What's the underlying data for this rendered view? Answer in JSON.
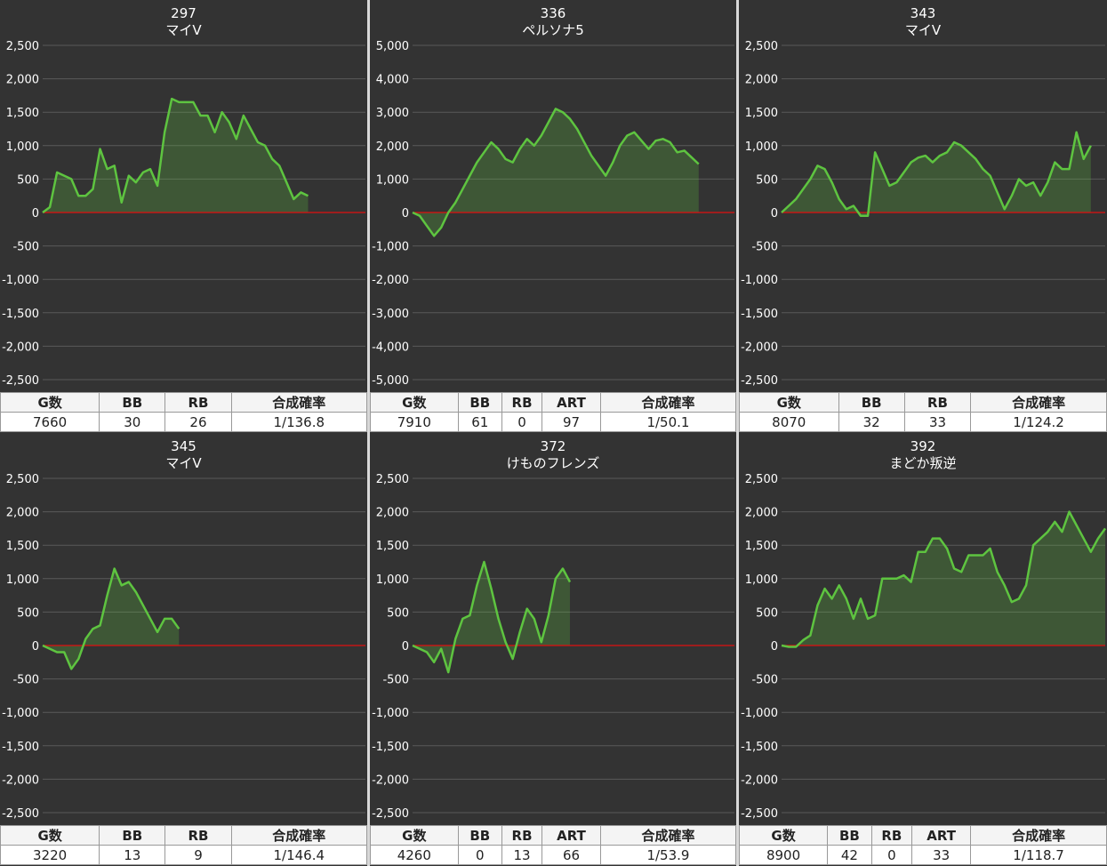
{
  "chart_data": [
    {
      "type": "line",
      "title": "297",
      "subtitle": "マイV",
      "color": "#5ec440",
      "zero_line_color": "#e01010",
      "grid": true,
      "ylim": [
        -2500,
        2500
      ],
      "yticks": [
        {
          "value": 2500,
          "label": "2,500"
        },
        {
          "value": 2000,
          "label": "2,000"
        },
        {
          "value": 1500,
          "label": "1,500"
        },
        {
          "value": 1000,
          "label": "1,000"
        },
        500,
        0,
        -500,
        {
          "value": -1000,
          "label": "-1,000"
        },
        {
          "value": -1500,
          "label": "-1,500"
        },
        {
          "value": -2000,
          "label": "-2,000"
        },
        {
          "value": -2500,
          "label": "-2,500"
        }
      ],
      "values": [
        0,
        80,
        600,
        550,
        500,
        250,
        250,
        350,
        950,
        650,
        700,
        150,
        550,
        450,
        600,
        650,
        400,
        1200,
        1700,
        1650,
        1650,
        1650,
        1450,
        1450,
        1200,
        1500,
        1350,
        1100,
        1450,
        1250,
        1050,
        1000,
        800,
        700,
        450,
        200,
        300,
        250
      ],
      "table": {
        "header": [
          "G数",
          "BB",
          "RB",
          "合成確率"
        ],
        "rows": [
          [
            "7660",
            "30",
            "26",
            "1/136.8"
          ]
        ]
      }
    },
    {
      "type": "line",
      "title": "336",
      "subtitle": "ペルソナ5",
      "color": "#5ec440",
      "zero_line_color": "#e01010",
      "grid": true,
      "ylim": [
        -5000,
        5000
      ],
      "yticks": [
        {
          "value": 5000,
          "label": "5,000"
        },
        {
          "value": 4000,
          "label": "4,000"
        },
        {
          "value": 3000,
          "label": "3,000"
        },
        {
          "value": 2000,
          "label": "2,000"
        },
        {
          "value": 1000,
          "label": "1,000"
        },
        0,
        {
          "value": -1000,
          "label": "-1,000"
        },
        {
          "value": -2000,
          "label": "-2,000"
        },
        {
          "value": -3000,
          "label": "-3,000"
        },
        {
          "value": -4000,
          "label": "-4,000"
        },
        {
          "value": -5000,
          "label": "-5,000"
        }
      ],
      "values": [
        0,
        -100,
        -400,
        -700,
        -450,
        0,
        300,
        700,
        1100,
        1500,
        1800,
        2100,
        1900,
        1600,
        1500,
        1900,
        2200,
        2000,
        2300,
        2700,
        3100,
        3000,
        2800,
        2500,
        2100,
        1700,
        1400,
        1100,
        1500,
        2000,
        2300,
        2400,
        2150,
        1900,
        2150,
        2200,
        2100,
        1800,
        1850,
        1650,
        1450
      ],
      "table": {
        "header": [
          "G数",
          "BB",
          "RB",
          "ART",
          "合成確率"
        ],
        "rows": [
          [
            "7910",
            "61",
            "0",
            "97",
            "1/50.1"
          ]
        ]
      }
    },
    {
      "type": "line",
      "title": "343",
      "subtitle": "マイV",
      "color": "#5ec440",
      "zero_line_color": "#e01010",
      "grid": true,
      "ylim": [
        -2500,
        2500
      ],
      "yticks": [
        {
          "value": 2500,
          "label": "2,500"
        },
        {
          "value": 2000,
          "label": "2,000"
        },
        {
          "value": 1500,
          "label": "1,500"
        },
        {
          "value": 1000,
          "label": "1,000"
        },
        500,
        0,
        -500,
        {
          "value": -1000,
          "label": "-1,000"
        },
        {
          "value": -1500,
          "label": "-1,500"
        },
        {
          "value": -2000,
          "label": "-2,000"
        },
        {
          "value": -2500,
          "label": "-2,500"
        }
      ],
      "values": [
        0,
        100,
        200,
        350,
        500,
        700,
        650,
        450,
        200,
        50,
        100,
        -50,
        -50,
        900,
        650,
        400,
        450,
        600,
        750,
        820,
        850,
        750,
        850,
        900,
        1050,
        1000,
        900,
        800,
        650,
        550,
        300,
        50,
        250,
        500,
        400,
        450,
        250,
        450,
        750,
        650,
        650,
        1200,
        800,
        1000
      ],
      "table": {
        "header": [
          "G数",
          "BB",
          "RB",
          "合成確率"
        ],
        "rows": [
          [
            "8070",
            "32",
            "33",
            "1/124.2"
          ]
        ]
      }
    },
    {
      "type": "line",
      "title": "345",
      "subtitle": "マイV",
      "color": "#5ec440",
      "zero_line_color": "#e01010",
      "grid": true,
      "ylim": [
        -2500,
        2500
      ],
      "yticks": [
        {
          "value": 2500,
          "label": "2,500"
        },
        {
          "value": 2000,
          "label": "2,000"
        },
        {
          "value": 1500,
          "label": "1,500"
        },
        {
          "value": 1000,
          "label": "1,000"
        },
        500,
        0,
        -500,
        {
          "value": -1000,
          "label": "-1,000"
        },
        {
          "value": -1500,
          "label": "-1,500"
        },
        {
          "value": -2000,
          "label": "-2,000"
        },
        {
          "value": -2500,
          "label": "-2,500"
        }
      ],
      "values": [
        0,
        -50,
        -100,
        -100,
        -350,
        -200,
        100,
        250,
        300,
        750,
        1150,
        900,
        950,
        800,
        600,
        400,
        200,
        400,
        400,
        250
      ],
      "table": {
        "header": [
          "G数",
          "BB",
          "RB",
          "合成確率"
        ],
        "rows": [
          [
            "3220",
            "13",
            "9",
            "1/146.4"
          ]
        ]
      }
    },
    {
      "type": "line",
      "title": "372",
      "subtitle": "けものフレンズ",
      "color": "#5ec440",
      "zero_line_color": "#e01010",
      "grid": true,
      "ylim": [
        -2500,
        2500
      ],
      "yticks": [
        {
          "value": 2500,
          "label": "2,500"
        },
        {
          "value": 2000,
          "label": "2,000"
        },
        {
          "value": 1500,
          "label": "1,500"
        },
        {
          "value": 1000,
          "label": "1,000"
        },
        500,
        0,
        -500,
        {
          "value": -1000,
          "label": "-1,000"
        },
        {
          "value": -1500,
          "label": "-1,500"
        },
        {
          "value": -2000,
          "label": "-2,000"
        },
        {
          "value": -2500,
          "label": "-2,500"
        }
      ],
      "values": [
        0,
        -50,
        -100,
        -250,
        -50,
        -400,
        100,
        400,
        450,
        900,
        1250,
        850,
        400,
        50,
        -200,
        200,
        550,
        400,
        50,
        450,
        1000,
        1150,
        950
      ],
      "table": {
        "header": [
          "G数",
          "BB",
          "RB",
          "ART",
          "合成確率"
        ],
        "rows": [
          [
            "4260",
            "0",
            "13",
            "66",
            "1/53.9"
          ]
        ]
      }
    },
    {
      "type": "line",
      "title": "392",
      "subtitle": "まどか叛逆",
      "color": "#5ec440",
      "zero_line_color": "#e01010",
      "grid": true,
      "ylim": [
        -2500,
        2500
      ],
      "yticks": [
        {
          "value": 2500,
          "label": "2,500"
        },
        {
          "value": 2000,
          "label": "2,000"
        },
        {
          "value": 1500,
          "label": "1,500"
        },
        {
          "value": 1000,
          "label": "1,000"
        },
        500,
        0,
        -500,
        {
          "value": -1000,
          "label": "-1,000"
        },
        {
          "value": -1500,
          "label": "-1,500"
        },
        {
          "value": -2000,
          "label": "-2,000"
        },
        {
          "value": -2500,
          "label": "-2,500"
        }
      ],
      "values": [
        0,
        -20,
        -20,
        80,
        150,
        600,
        850,
        700,
        900,
        700,
        400,
        700,
        400,
        450,
        1000,
        1000,
        1000,
        1050,
        950,
        1400,
        1400,
        1600,
        1600,
        1450,
        1150,
        1100,
        1350,
        1350,
        1350,
        1450,
        1100,
        900,
        650,
        700,
        900,
        1500,
        1600,
        1700,
        1850,
        1700,
        2000,
        1800,
        1600,
        1400,
        1600,
        1750
      ],
      "table": {
        "header": [
          "G数",
          "BB",
          "RB",
          "ART",
          "合成確率"
        ],
        "rows": [
          [
            "8900",
            "42",
            "0",
            "33",
            "1/118.7"
          ]
        ]
      }
    }
  ]
}
